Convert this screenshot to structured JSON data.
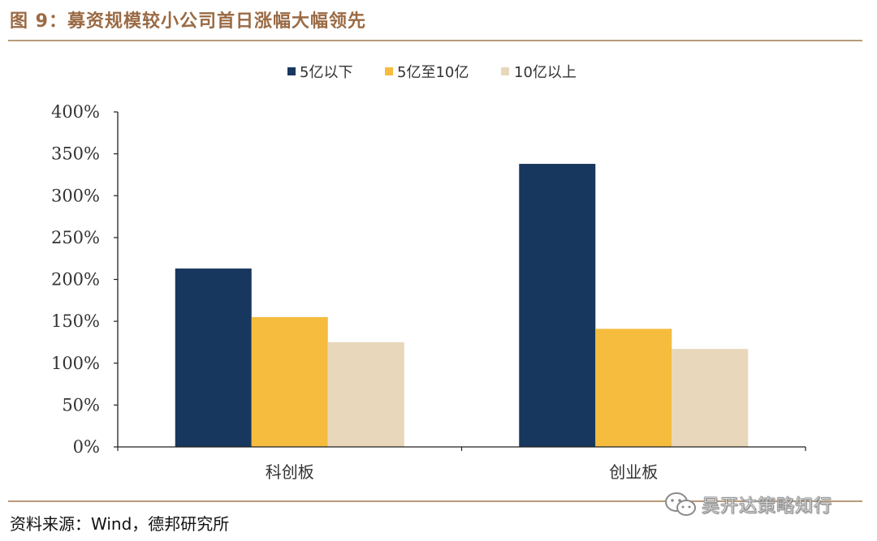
{
  "title": "图 9：募资规模较小公司首日涨幅大幅领先",
  "source": "资料来源：Wind，德邦研究所",
  "watermark": "吴开达策略知行",
  "chart_data": {
    "type": "bar",
    "categories": [
      "科创板",
      "创业板"
    ],
    "series": [
      {
        "name": "5亿以下",
        "values": [
          213,
          338
        ],
        "color": "#17375e"
      },
      {
        "name": "5亿至10亿",
        "values": [
          155,
          141
        ],
        "color": "#f5bc3d"
      },
      {
        "name": "10亿以上",
        "values": [
          125,
          117
        ],
        "color": "#e8d7bb"
      }
    ],
    "y_ticks": [
      "0%",
      "50%",
      "100%",
      "150%",
      "200%",
      "250%",
      "300%",
      "350%",
      "400%"
    ],
    "ylim": [
      0,
      400
    ],
    "grid": false,
    "legend_position": "top-center"
  }
}
